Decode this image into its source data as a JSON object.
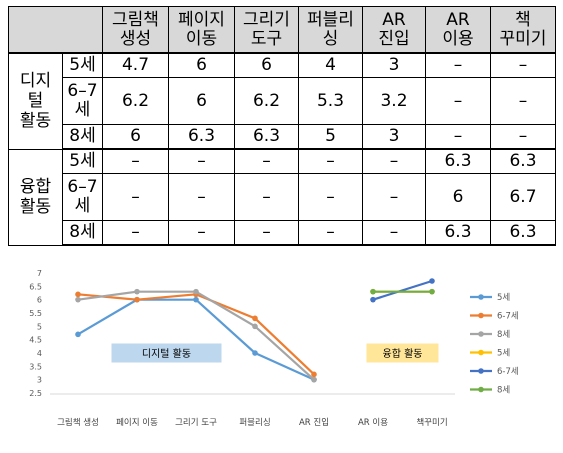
{
  "table": {
    "headers": [
      "그림책\n생성",
      "페이지\n이동",
      "그리기\n도구",
      "퍼블리\n싱",
      "AR\n진입",
      "AR\n이용",
      "책\n꾸미기"
    ],
    "groups": [
      {
        "label": "디지\n털\n활동",
        "rows": [
          {
            "age": "5세",
            "values": [
              "4.7",
              "6",
              "6",
              "4",
              "3",
              "–",
              "–"
            ]
          },
          {
            "age": "6–7\n세",
            "values": [
              "6.2",
              "6",
              "6.2",
              "5.3",
              "3.2",
              "–",
              "–"
            ]
          },
          {
            "age": "8세",
            "values": [
              "6",
              "6.3",
              "6.3",
              "5",
              "3",
              "–",
              "–"
            ]
          }
        ]
      },
      {
        "label": "융합\n활동",
        "rows": [
          {
            "age": "5세",
            "values": [
              "–",
              "–",
              "–",
              "–",
              "–",
              "6.3",
              "6.3"
            ]
          },
          {
            "age": "6–7\n세",
            "values": [
              "–",
              "–",
              "–",
              "–",
              "–",
              "6",
              "6.7"
            ]
          },
          {
            "age": "8세",
            "values": [
              "–",
              "–",
              "–",
              "–",
              "–",
              "6.3",
              "6.3"
            ]
          }
        ]
      }
    ]
  },
  "chart_data": {
    "type": "line",
    "categories": [
      "그림책 생성",
      "페이지 이동",
      "그리기 도구",
      "퍼블리싱",
      "AR 진입",
      "AR 이용",
      "책꾸미기"
    ],
    "ylim": [
      2.5,
      7
    ],
    "yticks": [
      "2.5",
      "3",
      "3.5",
      "4",
      "4.5",
      "5",
      "5.5",
      "6",
      "6.5",
      "7"
    ],
    "grid": false,
    "legend_position": "right",
    "series": [
      {
        "name": "5세",
        "color": "#5b9bd5",
        "values": [
          4.7,
          6,
          6,
          4,
          3,
          null,
          null
        ]
      },
      {
        "name": "6-7세",
        "color": "#ed7d31",
        "values": [
          6.2,
          6,
          6.2,
          5.3,
          3.2,
          null,
          null
        ]
      },
      {
        "name": "8세",
        "color": "#a5a5a5",
        "values": [
          6,
          6.3,
          6.3,
          5,
          3,
          null,
          null
        ]
      },
      {
        "name": "5세",
        "color": "#ffc000",
        "values": [
          null,
          null,
          null,
          null,
          null,
          6.3,
          6.3
        ]
      },
      {
        "name": "6-7세",
        "color": "#4472c4",
        "values": [
          null,
          null,
          null,
          null,
          null,
          6,
          6.7
        ]
      },
      {
        "name": "8세",
        "color": "#70ad47",
        "values": [
          null,
          null,
          null,
          null,
          null,
          6.3,
          6.3
        ]
      }
    ],
    "annotations": [
      {
        "text": "디지털 활동",
        "fill": "#bdd7ee",
        "at_category": 1.5,
        "at_y": 4
      },
      {
        "text": "융합 활동",
        "fill": "#ffe699",
        "at_category": 5.5,
        "at_y": 4
      }
    ]
  }
}
